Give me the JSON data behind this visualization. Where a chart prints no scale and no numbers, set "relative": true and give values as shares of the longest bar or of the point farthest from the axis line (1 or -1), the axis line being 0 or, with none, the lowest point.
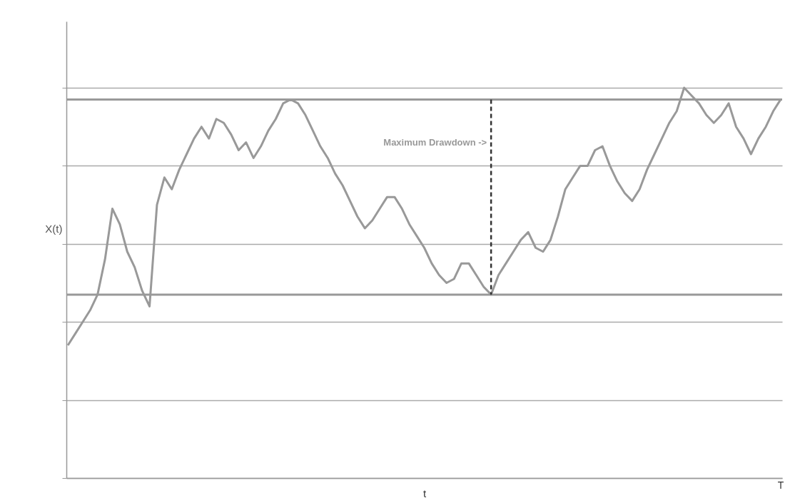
{
  "chart_data": {
    "type": "line",
    "relative": true,
    "xlabel": "t",
    "ylabel": "X(t)",
    "grid": "y",
    "marker": "none",
    "annotations": [
      "Maximum Drawdown ->",
      "T"
    ],
    "line_style": "solid",
    "categories": [
      null,
      null,
      null,
      null,
      null,
      null,
      null,
      null,
      null,
      null,
      null,
      null,
      null,
      null,
      null,
      null,
      null,
      null,
      null,
      null,
      null,
      null,
      null,
      null,
      null,
      null,
      null,
      null,
      null,
      null,
      null,
      null,
      null,
      null,
      null,
      null,
      null,
      null,
      null,
      null,
      null,
      null,
      null,
      null,
      null,
      null,
      null,
      null,
      null,
      null,
      null,
      null,
      null,
      null,
      null,
      null,
      null,
      null,
      null,
      null,
      null,
      null,
      null,
      null,
      null,
      null,
      null,
      null,
      null,
      null,
      null,
      null,
      null,
      null,
      null,
      null,
      null,
      null,
      null,
      null,
      null,
      null,
      null,
      null,
      null,
      null,
      null,
      null,
      null,
      null,
      null,
      null,
      null,
      null,
      null,
      null,
      null
    ],
    "series": [
      {
        "color": "#999999",
        "values": [
          0.34,
          0.37,
          0.4,
          0.43,
          0.47,
          0.56,
          0.69,
          0.65,
          0.58,
          0.54,
          0.48,
          0.44,
          0.7,
          0.77,
          0.74,
          0.79,
          0.83,
          0.87,
          0.9,
          0.87,
          0.92,
          0.91,
          0.88,
          0.84,
          0.86,
          0.82,
          0.85,
          0.89,
          0.92,
          0.96,
          0.97,
          0.96,
          0.93,
          0.89,
          0.85,
          0.82,
          0.78,
          0.75,
          0.71,
          0.67,
          0.64,
          0.66,
          0.69,
          0.72,
          0.72,
          0.69,
          0.65,
          0.62,
          0.59,
          0.55,
          0.52,
          0.5,
          0.51,
          0.55,
          0.55,
          0.52,
          0.49,
          0.47,
          0.52,
          0.55,
          0.58,
          0.61,
          0.63,
          0.59,
          0.58,
          0.61,
          0.67,
          0.74,
          0.77,
          0.8,
          0.8,
          0.84,
          0.85,
          0.8,
          0.76,
          0.73,
          0.71,
          0.74,
          0.79,
          0.83,
          0.87,
          0.91,
          0.94,
          1,
          0.98,
          0.96,
          0.93,
          0.91,
          0.93,
          0.96,
          0.9,
          0.87,
          0.83,
          0.87,
          0.9,
          0.94,
          0.97
        ]
      }
    ],
    "ref_lines": [
      {
        "axis": "y",
        "value": 0.97,
        "color": "#999999",
        "line_style": "solid"
      },
      {
        "axis": "y",
        "value": 0.47,
        "color": "#999999",
        "line_style": "solid"
      }
    ]
  }
}
